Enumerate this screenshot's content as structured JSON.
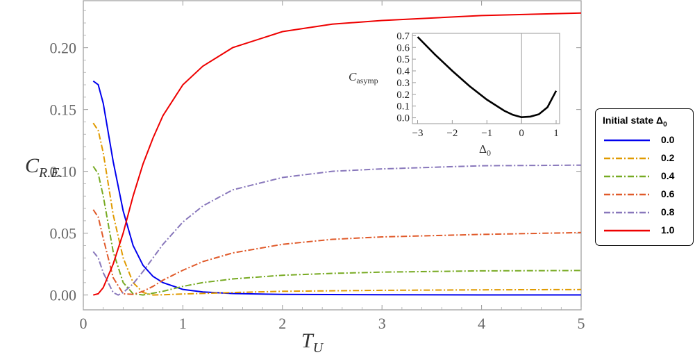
{
  "chart_data": [
    {
      "type": "line",
      "xlabel": "T_U",
      "ylabel": "C_R.E.",
      "xlim": [
        0,
        5
      ],
      "ylim": [
        -0.012,
        0.238
      ],
      "x_ticks": [
        "0",
        "1",
        "2",
        "3",
        "4",
        "5"
      ],
      "y_ticks": [
        "0.00",
        "0.05",
        "0.10",
        "0.15",
        "0.20"
      ],
      "grid": false,
      "legend": {
        "title": "Initial state Δ0",
        "position": "right",
        "entries": [
          "0.0",
          "0.2",
          "0.4",
          "0.6",
          "0.8",
          "1.0"
        ]
      },
      "series": [
        {
          "name": "0.0",
          "color": "#0000ee",
          "dash": "solid",
          "x": [
            0.1,
            0.15,
            0.2,
            0.3,
            0.4,
            0.5,
            0.6,
            0.7,
            0.8,
            1.0,
            1.2,
            1.5,
            2.0,
            3.0,
            4.0,
            5.0
          ],
          "y": [
            0.173,
            0.17,
            0.155,
            0.108,
            0.068,
            0.04,
            0.024,
            0.015,
            0.01,
            0.0045,
            0.0025,
            0.0012,
            0.0005,
            0.0002,
            0.0001,
            0.0001
          ]
        },
        {
          "name": "0.2",
          "color": "#e09a00",
          "dash": "dashdot",
          "x": [
            0.1,
            0.15,
            0.2,
            0.3,
            0.4,
            0.5,
            0.6,
            0.7,
            0.8,
            1.0,
            1.5,
            2.0,
            3.0,
            4.0,
            5.0
          ],
          "y": [
            0.139,
            0.133,
            0.115,
            0.065,
            0.03,
            0.01,
            0.002,
            0.0,
            0.0002,
            0.0008,
            0.002,
            0.003,
            0.0038,
            0.0042,
            0.0044
          ]
        },
        {
          "name": "0.4",
          "color": "#77aa22",
          "dash": "dashdot",
          "x": [
            0.1,
            0.15,
            0.2,
            0.3,
            0.4,
            0.5,
            0.6,
            0.7,
            0.8,
            1.0,
            1.2,
            1.5,
            2.0,
            2.5,
            3.0,
            4.0,
            5.0
          ],
          "y": [
            0.104,
            0.098,
            0.08,
            0.035,
            0.01,
            0.001,
            0.0,
            0.0015,
            0.003,
            0.007,
            0.01,
            0.013,
            0.016,
            0.0175,
            0.0185,
            0.0195,
            0.0198
          ]
        },
        {
          "name": "0.6",
          "color": "#e05a2a",
          "dash": "dashdot",
          "x": [
            0.1,
            0.15,
            0.2,
            0.3,
            0.4,
            0.5,
            0.6,
            0.7,
            0.8,
            1.0,
            1.2,
            1.5,
            2.0,
            2.5,
            3.0,
            4.0,
            5.0
          ],
          "y": [
            0.069,
            0.063,
            0.046,
            0.014,
            0.001,
            0.0005,
            0.003,
            0.007,
            0.012,
            0.02,
            0.027,
            0.034,
            0.041,
            0.045,
            0.047,
            0.049,
            0.0505
          ]
        },
        {
          "name": "0.8",
          "color": "#8877bb",
          "dash": "dashdot",
          "x": [
            0.1,
            0.15,
            0.2,
            0.3,
            0.35,
            0.4,
            0.5,
            0.6,
            0.7,
            0.8,
            1.0,
            1.2,
            1.5,
            2.0,
            2.5,
            3.0,
            4.0,
            5.0
          ],
          "y": [
            0.035,
            0.03,
            0.018,
            0.002,
            0.0,
            0.002,
            0.009,
            0.019,
            0.03,
            0.041,
            0.059,
            0.072,
            0.085,
            0.095,
            0.1,
            0.102,
            0.1045,
            0.105
          ]
        },
        {
          "name": "1.0",
          "color": "#ee0000",
          "dash": "solid",
          "x": [
            0.1,
            0.15,
            0.2,
            0.3,
            0.4,
            0.5,
            0.6,
            0.7,
            0.8,
            1.0,
            1.2,
            1.5,
            2.0,
            2.5,
            3.0,
            4.0,
            5.0
          ],
          "y": [
            0.0,
            0.001,
            0.006,
            0.025,
            0.05,
            0.08,
            0.106,
            0.127,
            0.145,
            0.17,
            0.185,
            0.2,
            0.213,
            0.219,
            0.222,
            0.226,
            0.228
          ]
        }
      ]
    },
    {
      "type": "line",
      "xlabel": "Δ0",
      "ylabel": "C_asymp",
      "xlim": [
        -3.15,
        1.1
      ],
      "ylim": [
        -0.05,
        0.72
      ],
      "x_ticks": [
        "−3",
        "−2",
        "−1",
        "0",
        "1"
      ],
      "y_ticks": [
        "0.0",
        "0.1",
        "0.2",
        "0.3",
        "0.4",
        "0.5",
        "0.6",
        "0.7"
      ],
      "vertical_line_at_x": 0,
      "series": [
        {
          "color": "#000000",
          "dash": "solid",
          "x": [
            -3.0,
            -2.5,
            -2.0,
            -1.5,
            -1.0,
            -0.5,
            -0.25,
            0.0,
            0.25,
            0.5,
            0.75,
            1.0
          ],
          "y": [
            0.69,
            0.54,
            0.4,
            0.27,
            0.155,
            0.06,
            0.025,
            0.005,
            0.01,
            0.03,
            0.09,
            0.23
          ]
        }
      ]
    }
  ],
  "main_axis_labels": {
    "y_main": "C",
    "y_sub": "R.E.",
    "x_main": "T",
    "x_sub": "U"
  },
  "inset_axis_labels": {
    "y_main": "C",
    "y_sub": "asymp",
    "x_main": "Δ",
    "x_sub": "0"
  },
  "legend": {
    "title_main": "Initial state Δ",
    "title_sub": "0",
    "entries": [
      "0.0",
      "0.2",
      "0.4",
      "0.6",
      "0.8",
      "1.0"
    ]
  }
}
